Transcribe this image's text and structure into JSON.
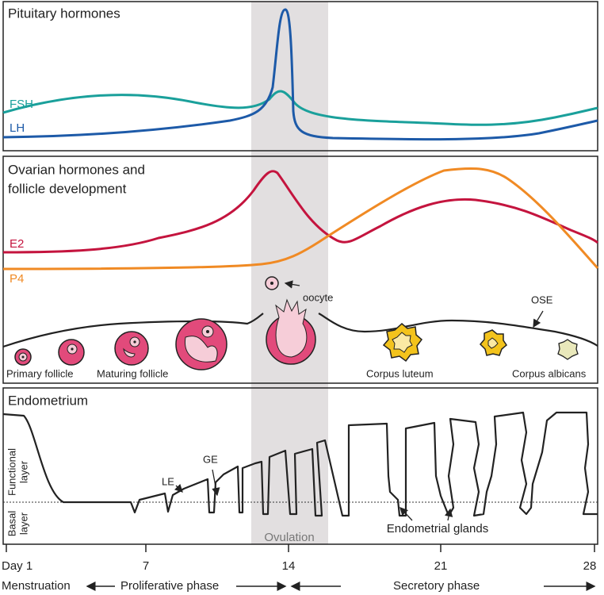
{
  "pituitary": {
    "title": "Pituitary hormones",
    "fsh": "FSH",
    "lh": "LH"
  },
  "ovarian": {
    "title_line1": "Ovarian hormones and",
    "title_line2": "follicle development",
    "e2": "E2",
    "p4": "P4",
    "oocyte": "oocyte",
    "ose": "OSE",
    "follicles": [
      "Primary follicle",
      "Maturing follicle",
      "Corpus luteum",
      "Corpus albicans"
    ]
  },
  "endometrium": {
    "title": "Endometrium",
    "le": "LE",
    "ge": "GE",
    "functional_line1": "Functional",
    "functional_line2": "layer",
    "basal_line1": "Basal",
    "basal_line2": "layer",
    "glands": "Endometrial glands"
  },
  "ovulation": "Ovulation",
  "days": [
    "Day 1",
    "7",
    "14",
    "21",
    "28"
  ],
  "phases": [
    "Menstruation",
    "Proliferative phase",
    "Secretory phase"
  ]
}
